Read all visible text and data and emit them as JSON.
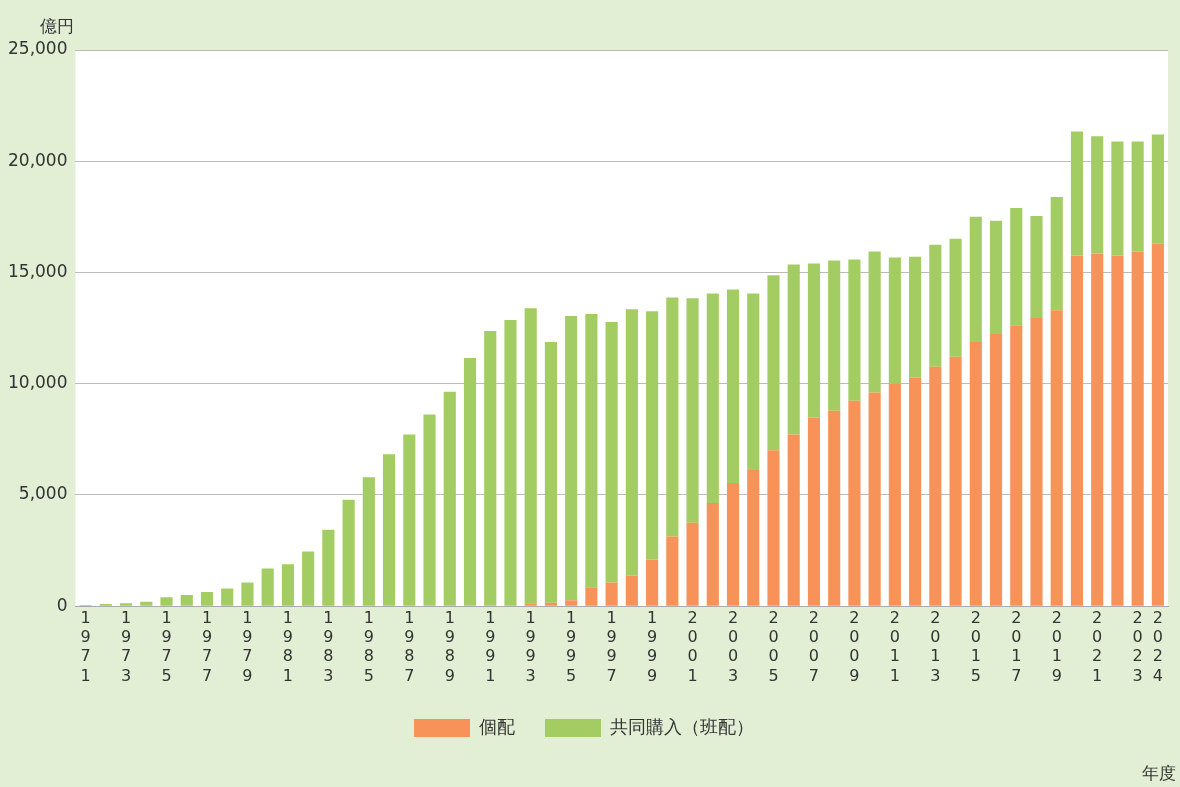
{
  "chart_data": {
    "type": "bar",
    "stacked": true,
    "ylabel": "億円",
    "xlabel": "年度",
    "categories": [
      "1971",
      null,
      "1973",
      null,
      "1975",
      null,
      "1977",
      null,
      "1979",
      null,
      "1981",
      null,
      "1983",
      null,
      "1985",
      null,
      "1987",
      null,
      "1989",
      null,
      "1991",
      null,
      "1993",
      null,
      "1995",
      null,
      "1997",
      null,
      "1999",
      null,
      "2001",
      null,
      "2003",
      null,
      "2005",
      null,
      "2007",
      null,
      "2009",
      null,
      "2011",
      null,
      "2013",
      null,
      "2015",
      null,
      "2017",
      null,
      "2019",
      null,
      "2021",
      null,
      "2023",
      "2024"
    ],
    "series": [
      {
        "name": "個配",
        "color": "#f79359",
        "values": [
          0,
          0,
          0,
          0,
          0,
          0,
          0,
          0,
          0,
          0,
          0,
          0,
          0,
          0,
          0,
          0,
          0,
          0,
          0,
          0,
          0,
          0,
          130,
          150,
          270,
          850,
          1070,
          1380,
          2100,
          3130,
          3750,
          4640,
          5540,
          6120,
          7010,
          7720,
          8480,
          8790,
          9240,
          9600,
          10000,
          10270,
          10760,
          11210,
          11880,
          12230,
          12630,
          12950,
          13300,
          15760,
          15850,
          15760,
          15940,
          16290
        ]
      },
      {
        "name": "共同購入（班配）",
        "color": "#a3cd62",
        "values": [
          50,
          100,
          130,
          200,
          400,
          500,
          640,
          800,
          1070,
          1700,
          1880,
          2460,
          3440,
          4780,
          5800,
          6830,
          7720,
          8620,
          9640,
          11160,
          12370,
          12860,
          13260,
          11720,
          12770,
          12280,
          11700,
          11970,
          11160,
          10750,
          10090,
          9420,
          8700,
          7940,
          7860,
          7640,
          6920,
          6750,
          6340,
          6340,
          5670,
          5440,
          5490,
          5310,
          5620,
          5090,
          5270,
          4590,
          5090,
          5580,
          5270,
          5130,
          4950,
          4910
        ]
      }
    ],
    "ylim": [
      0,
      25000
    ],
    "yticks": [
      {
        "value": 0,
        "label": "0"
      },
      {
        "value": 5000,
        "label": "5,000"
      },
      {
        "value": 10000,
        "label": "10,000"
      },
      {
        "value": 15000,
        "label": "15,000"
      },
      {
        "value": 20000,
        "label": "20,000"
      },
      {
        "value": 25000,
        "label": "25,000"
      }
    ],
    "grid": "y",
    "legend": "bottom"
  }
}
